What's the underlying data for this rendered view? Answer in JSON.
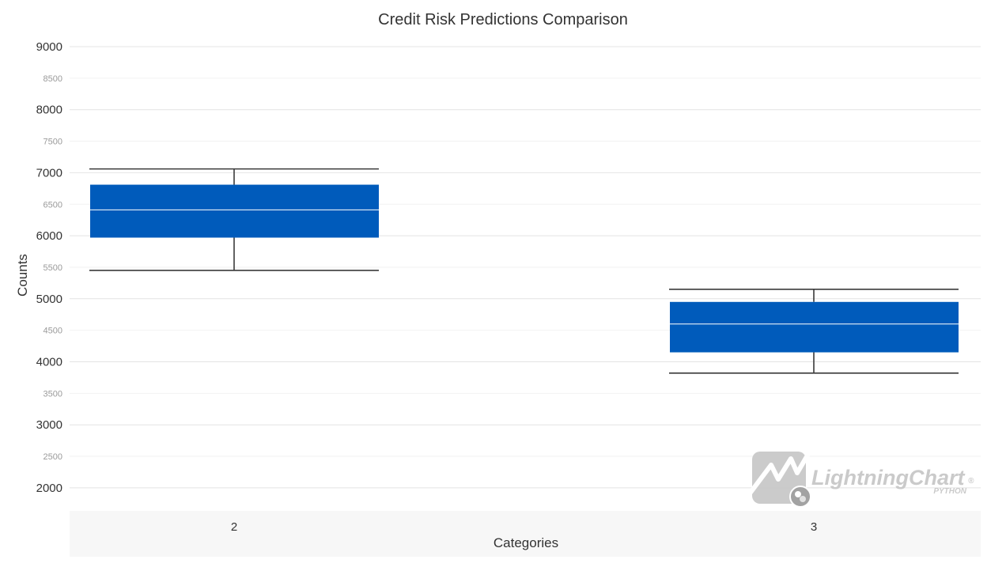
{
  "colors": {
    "box_fill": "#005bbb",
    "whisker": "#3a3a3a",
    "grid_major": "#e4e4e4",
    "grid_minor": "#f2f2f2",
    "plot_bg": "#ffffff",
    "xaxis_band": "#f7f7f7",
    "text": "#333333",
    "minor_text": "#9a9a9a"
  },
  "watermark": {
    "brand": "LightningChart",
    "registered": "®",
    "sub": "PYTHON",
    "icon": "lightningchart-logo-icon"
  },
  "chart_data": {
    "type": "box",
    "title": "Credit Risk Predictions Comparison",
    "xlabel": "Categories",
    "ylabel": "Counts",
    "ylim": [
      1600,
      9000
    ],
    "y_major_ticks": [
      "9000",
      "8000",
      "7000",
      "6000",
      "5000",
      "4000",
      "3000",
      "2000"
    ],
    "y_minor_ticks": [
      "8500",
      "7500",
      "6500",
      "5500",
      "4500",
      "3500",
      "2500"
    ],
    "grid": true,
    "legend": "none",
    "categories": [
      "2",
      "3"
    ],
    "boxes": [
      {
        "category": "2",
        "whisker_low": 5450,
        "q1": 5970,
        "median": 6410,
        "q3": 6810,
        "whisker_high": 7060
      },
      {
        "category": "3",
        "whisker_low": 3820,
        "q1": 4150,
        "median": 4600,
        "q3": 4950,
        "whisker_high": 5150
      }
    ]
  }
}
